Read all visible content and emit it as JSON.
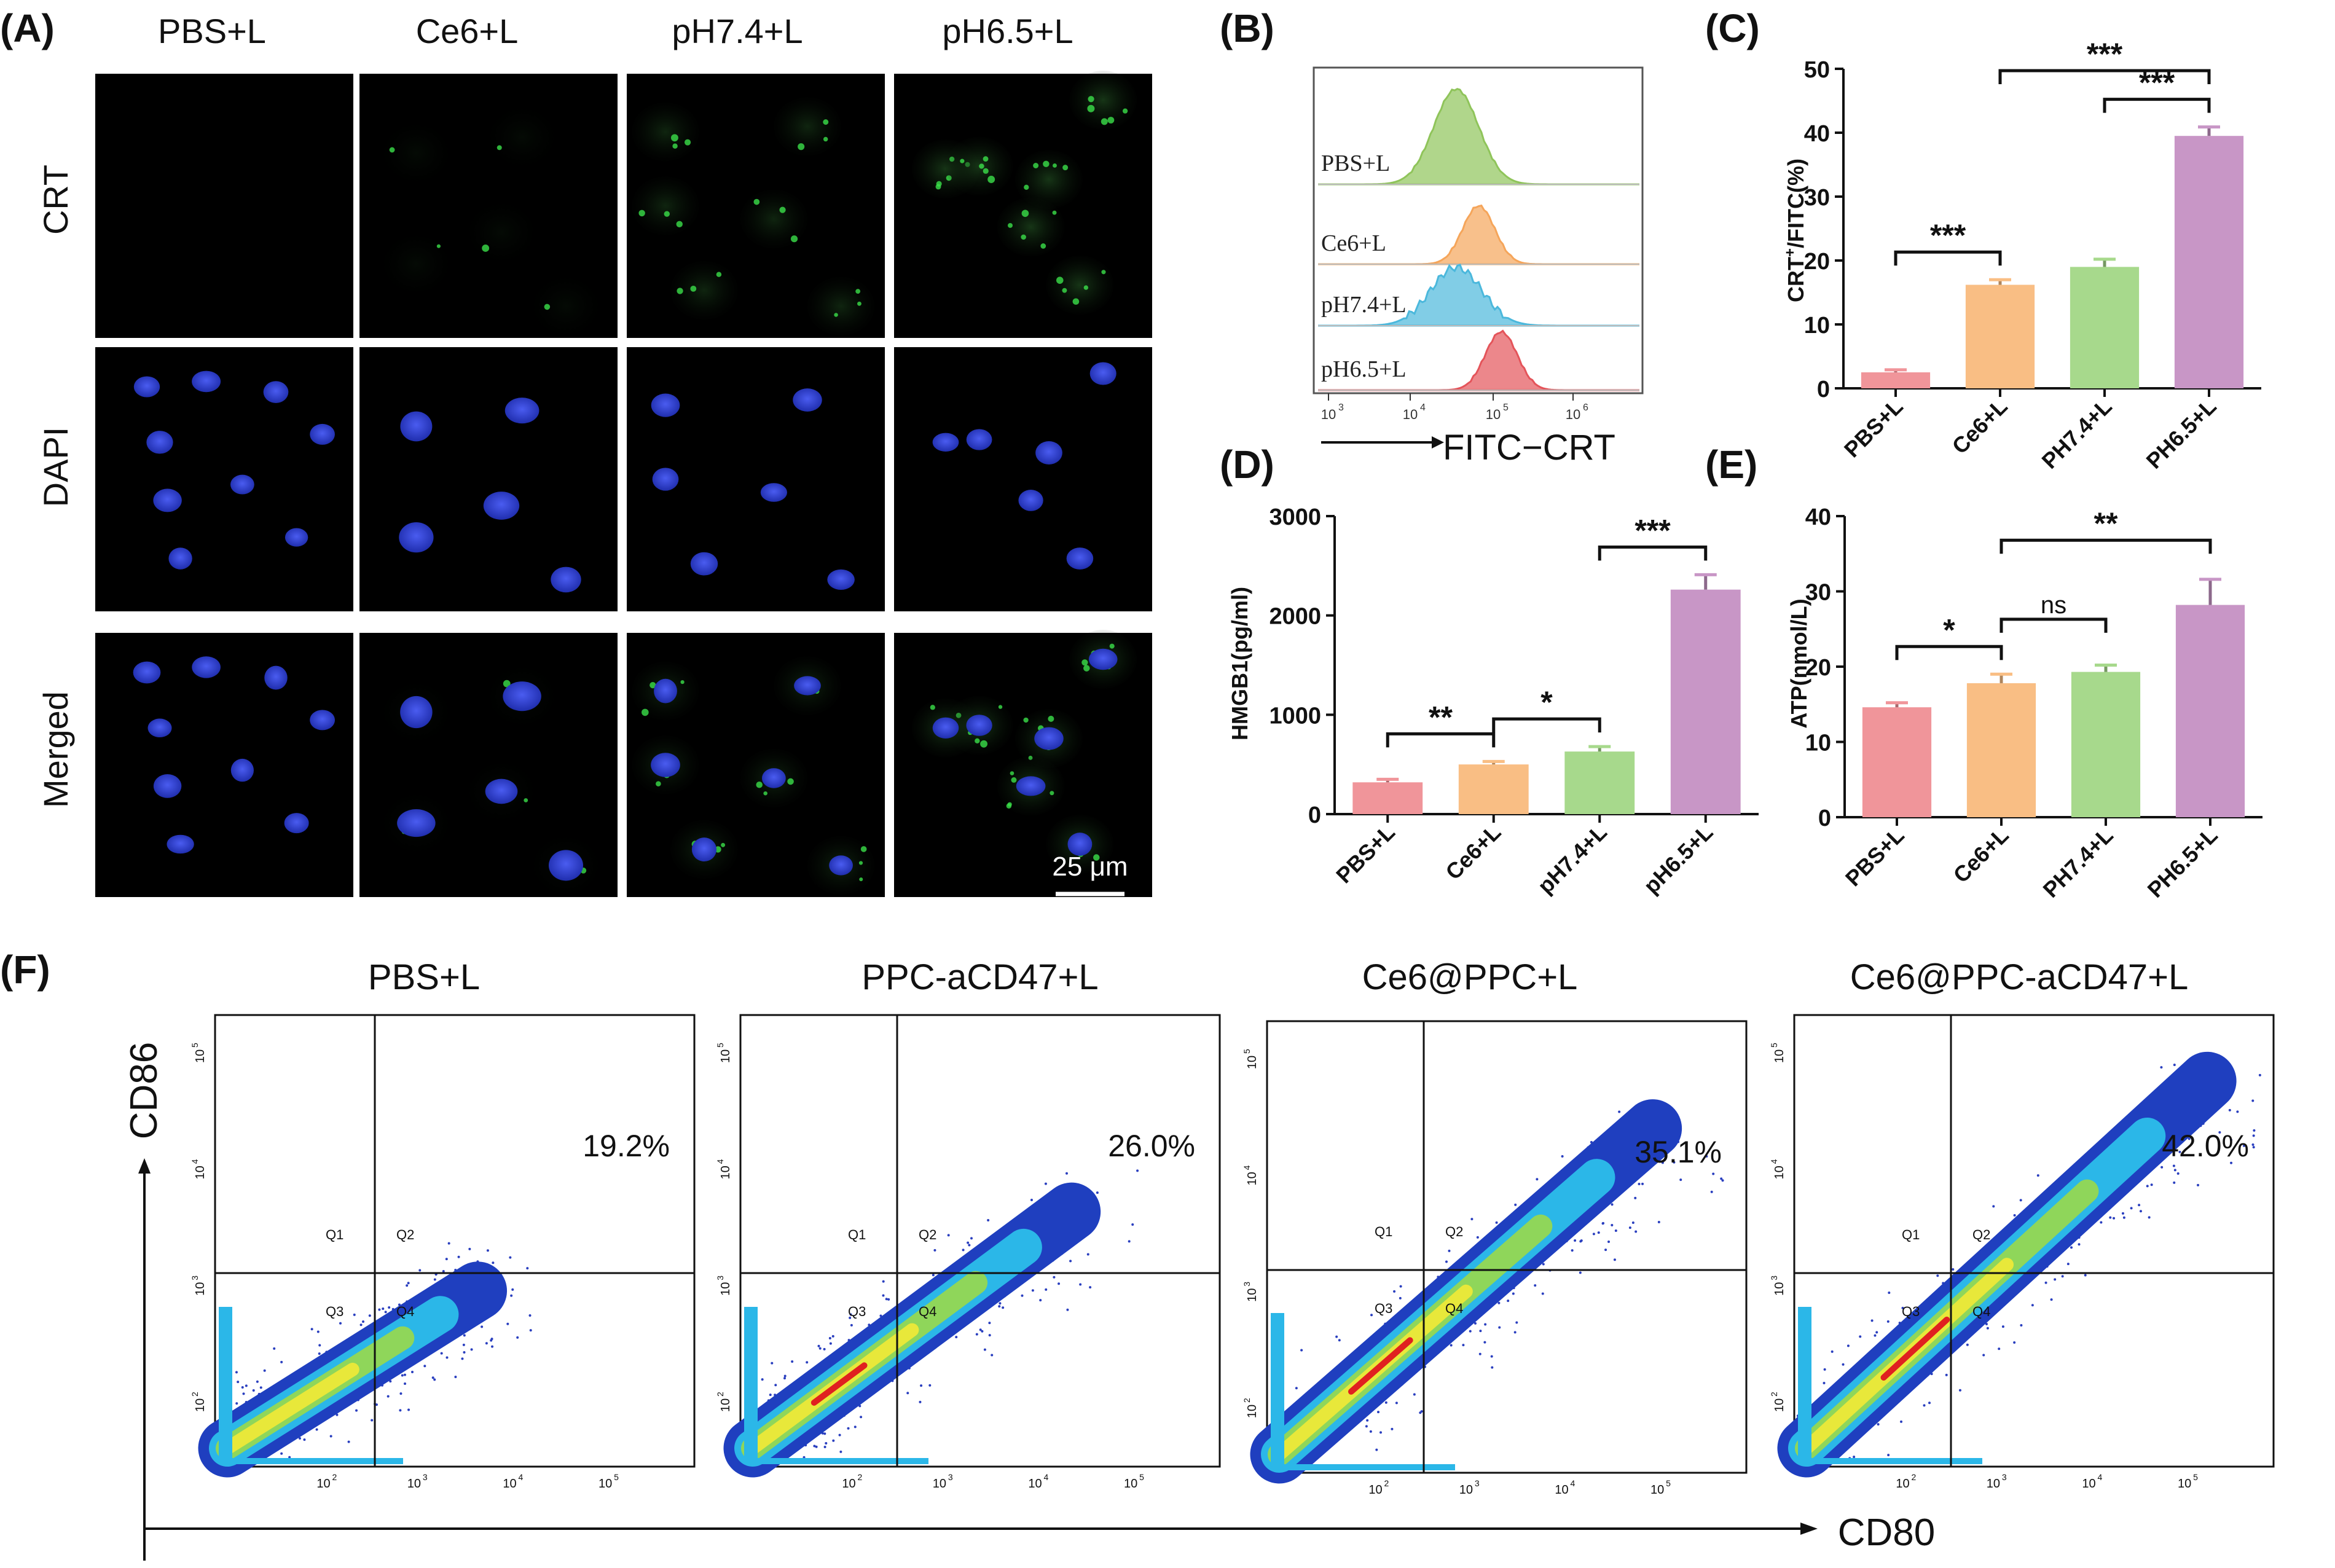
{
  "panels": {
    "A": {
      "letter": "(A)",
      "columns": [
        "PBS+L",
        "Ce6+L",
        "pH7.4+L",
        "pH6.5+L"
      ],
      "rows": [
        "CRT",
        "DAPI",
        "Merged"
      ],
      "scale_bar": "25 μm",
      "colors": {
        "crt": "#3be04a",
        "dapi": "#2b3cd8"
      }
    },
    "B": {
      "letter": "(B)",
      "groups": [
        "PBS+L",
        "Ce6+L",
        "pH7.4+L",
        "pH6.5+L"
      ],
      "colors": [
        "#8fc45a",
        "#f5a55a",
        "#4bb8dc",
        "#e4545a"
      ],
      "ticks": [
        {
          "base": "10",
          "exp": "3"
        },
        {
          "base": "10",
          "exp": "4"
        },
        {
          "base": "10",
          "exp": "5"
        },
        {
          "base": "10",
          "exp": "6"
        }
      ],
      "xlabel": "FITC−CRT"
    },
    "F": {
      "letter": "(F)",
      "titles": [
        "PBS+L",
        "PPC-aCD47+L",
        "Ce6@PPC+L",
        "Ce6@PPC-aCD47+L"
      ],
      "percents": [
        "19.2%",
        "26.0%",
        "35.1%",
        "42.0%"
      ],
      "quadrants": [
        "Q1",
        "Q2",
        "Q3",
        "Q4"
      ],
      "xticks": [
        {
          "base": "10",
          "exp": "2"
        },
        {
          "base": "10",
          "exp": "3"
        },
        {
          "base": "10",
          "exp": "4"
        },
        {
          "base": "10",
          "exp": "5"
        }
      ],
      "yticks": [
        {
          "base": "10",
          "exp": "2"
        },
        {
          "base": "10",
          "exp": "3"
        },
        {
          "base": "10",
          "exp": "4"
        },
        {
          "base": "10",
          "exp": "5"
        }
      ],
      "ylabel": "CD86",
      "xlabel": "CD80"
    }
  },
  "chart_data": [
    {
      "id": "C",
      "letter": "(C)",
      "type": "bar",
      "categories": [
        "PBS+L",
        "Ce6+L",
        "PH7.4+L",
        "PH6.5+L"
      ],
      "values": [
        2.5,
        16.2,
        19.0,
        39.5
      ],
      "errors": [
        0.4,
        0.8,
        1.2,
        1.4
      ],
      "colors": [
        "#f0959a",
        "#f9be84",
        "#a7d98c",
        "#c896c6"
      ],
      "ylabel": "CRT+/FITC(%)",
      "ylabel_main": "CRT",
      "ylabel_sup": "+",
      "ylabel_rest": "/FITC(%)",
      "ylim": [
        0,
        50
      ],
      "yticks": [
        0,
        10,
        20,
        30,
        40,
        50
      ],
      "significance": [
        {
          "from": 0,
          "to": 1,
          "label": "***"
        },
        {
          "from": 2,
          "to": 3,
          "label": "***"
        },
        {
          "from": 1,
          "to": 3,
          "label": "***"
        }
      ]
    },
    {
      "id": "D",
      "letter": "(D)",
      "type": "bar",
      "categories": [
        "PBS+L",
        "Ce6+L",
        "pH7.4+L",
        "pH6.5+L"
      ],
      "values": [
        320,
        500,
        630,
        2260
      ],
      "errors": [
        30,
        30,
        50,
        150
      ],
      "colors": [
        "#f0959a",
        "#f9be84",
        "#a7d98c",
        "#c896c6"
      ],
      "ylabel": "HMGB1(pg/ml)",
      "ylim": [
        0,
        3000
      ],
      "yticks": [
        0,
        1000,
        2000,
        3000
      ],
      "significance": [
        {
          "from": 0,
          "to": 1,
          "label": "**"
        },
        {
          "from": 1,
          "to": 2,
          "label": "*"
        },
        {
          "from": 2,
          "to": 3,
          "label": "***"
        }
      ]
    },
    {
      "id": "E",
      "letter": "(E)",
      "type": "bar",
      "categories": [
        "PBS+L",
        "Ce6+L",
        "PH7.4+L",
        "PH6.5+L"
      ],
      "values": [
        14.6,
        17.8,
        19.3,
        28.2
      ],
      "errors": [
        0.6,
        1.2,
        0.9,
        3.4
      ],
      "colors": [
        "#f0959a",
        "#f9be84",
        "#a7d98c",
        "#c896c6"
      ],
      "ylabel": "ATP(nmol/L)",
      "ylim": [
        0,
        40
      ],
      "yticks": [
        0,
        10,
        20,
        30,
        40
      ],
      "significance": [
        {
          "from": 0,
          "to": 1,
          "label": "*"
        },
        {
          "from": 1,
          "to": 2,
          "label": "ns"
        },
        {
          "from": 1,
          "to": 3,
          "label": "**"
        }
      ]
    }
  ]
}
